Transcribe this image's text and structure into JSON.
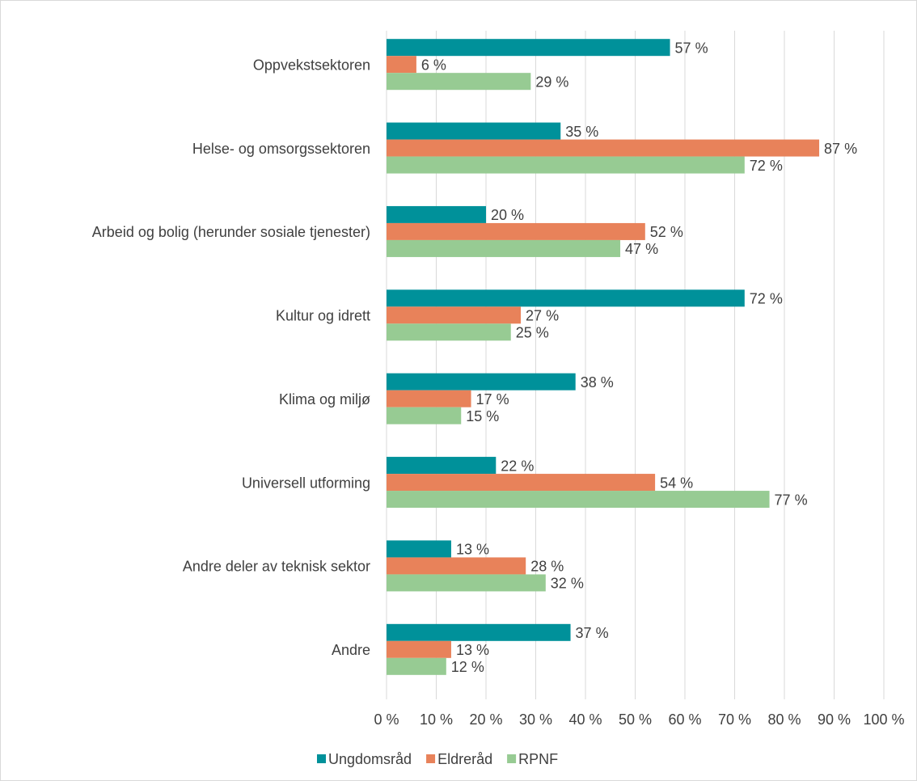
{
  "chart_data": {
    "type": "bar",
    "orientation": "horizontal",
    "categories": [
      "Oppvekstsektoren",
      "Helse- og omsorgssektoren",
      "Arbeid og bolig (herunder sosiale tjenester)",
      "Kultur og idrett",
      "Klima og miljø",
      "Universell utforming",
      "Andre deler av teknisk sektor",
      "Andre"
    ],
    "series": [
      {
        "name": "Ungdomsråd",
        "color": "#00919a",
        "values": [
          57,
          35,
          20,
          72,
          38,
          22,
          13,
          37
        ],
        "value_labels": [
          "57 %",
          "35 %",
          "20 %",
          "72 %",
          "38 %",
          "22 %",
          "13 %",
          "37 %"
        ]
      },
      {
        "name": "Eldreråd",
        "color": "#e8825a",
        "values": [
          6,
          87,
          52,
          27,
          17,
          54,
          28,
          13
        ],
        "value_labels": [
          "6 %",
          "87 %",
          "52 %",
          "27 %",
          "17 %",
          "54 %",
          "28 %",
          "13 %"
        ]
      },
      {
        "name": "RPNF",
        "color": "#97cb93",
        "values": [
          29,
          72,
          47,
          25,
          15,
          77,
          32,
          12
        ],
        "value_labels": [
          "29 %",
          "72 %",
          "47 %",
          "25 %",
          "15 %",
          "77 %",
          "32 %",
          "12 %"
        ]
      }
    ],
    "xlim": [
      0,
      100
    ],
    "xticks": [
      {
        "value": 0,
        "label": "0 %"
      },
      {
        "value": 10,
        "label": "10 %"
      },
      {
        "value": 20,
        "label": "20 %"
      },
      {
        "value": 30,
        "label": "30 %"
      },
      {
        "value": 40,
        "label": "40 %"
      },
      {
        "value": 50,
        "label": "50 %"
      },
      {
        "value": 60,
        "label": "60 %"
      },
      {
        "value": 70,
        "label": "70 %"
      },
      {
        "value": 80,
        "label": "80 %"
      },
      {
        "value": 90,
        "label": "90 %"
      },
      {
        "value": 100,
        "label": "100 %"
      }
    ],
    "grid": true,
    "legend": "bottom"
  }
}
